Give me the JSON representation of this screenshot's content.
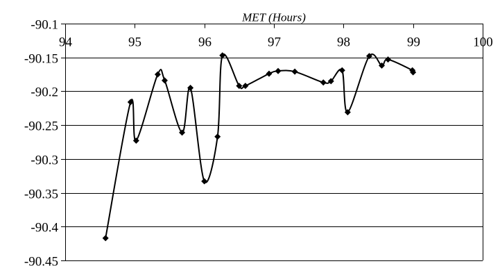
{
  "chart_data": {
    "type": "line",
    "title": "",
    "xlabel": "MET (Hours)",
    "ylabel": "",
    "xlim": [
      94,
      100
    ],
    "ylim": [
      -90.45,
      -90.1
    ],
    "x_ticks": [
      94,
      95,
      96,
      97,
      98,
      99,
      100
    ],
    "x_tick_labels": [
      "94",
      "95",
      "96",
      "97",
      "98",
      "99",
      "100"
    ],
    "y_ticks": [
      -90.1,
      -90.15,
      -90.2,
      -90.25,
      -90.3,
      -90.35,
      -90.4,
      -90.45
    ],
    "y_tick_labels": [
      "-90.1",
      "-90.15",
      "-90.2",
      "-90.25",
      "-90.3",
      "-90.35",
      "-90.4",
      "-90.45"
    ],
    "x_axis_position": "top",
    "grid": "horizontal",
    "legend": "none",
    "line_color": "#000000",
    "marker": "diamond",
    "smooth": true,
    "series": [
      {
        "x": [
          94.58,
          94.94,
          95.02,
          95.33,
          95.43,
          95.68,
          95.8,
          96.0,
          96.19,
          96.26,
          96.5,
          96.59,
          96.93,
          97.06,
          97.3,
          97.71,
          97.82,
          97.98,
          98.06,
          98.37,
          98.55,
          98.64,
          98.99,
          99.0
        ],
        "y": [
          -90.417,
          -90.216,
          -90.273,
          -90.175,
          -90.184,
          -90.261,
          -90.195,
          -90.333,
          -90.267,
          -90.147,
          -90.192,
          -90.192,
          -90.174,
          -90.17,
          -90.171,
          -90.187,
          -90.185,
          -90.169,
          -90.231,
          -90.148,
          -90.162,
          -90.153,
          -90.169,
          -90.172
        ]
      }
    ]
  }
}
